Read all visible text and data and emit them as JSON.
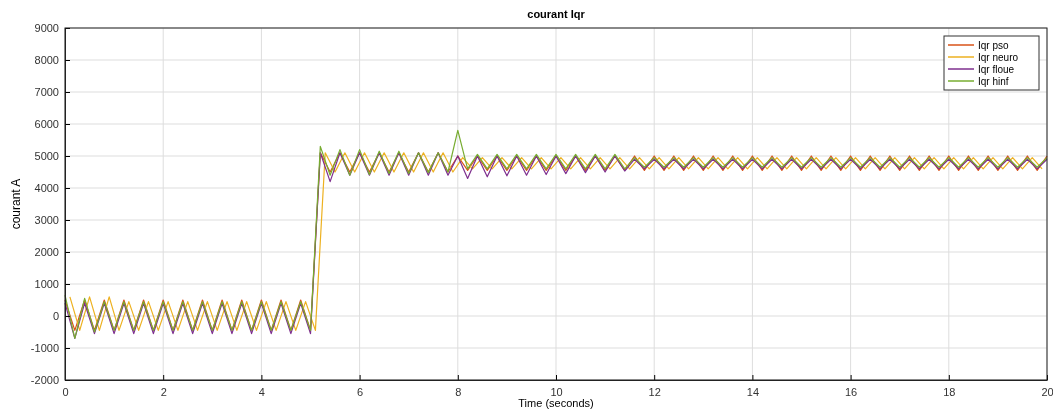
{
  "chart_data": {
    "type": "line",
    "title": "courant  Iqr",
    "xlabel": "Time (seconds)",
    "ylabel": "courant  A",
    "x": [
      0,
      0.2,
      0.4,
      0.6,
      0.8,
      1,
      1.2,
      1.4,
      1.6,
      1.8,
      2,
      2.2,
      2.4,
      2.6,
      2.8,
      3,
      3.2,
      3.4,
      3.6,
      3.8,
      4,
      4.2,
      4.4,
      4.6,
      4.8,
      5,
      5.2,
      5.4,
      5.6,
      5.8,
      6,
      6.2,
      6.4,
      6.6,
      6.8,
      7,
      7.2,
      7.4,
      7.6,
      7.8,
      8,
      8.2,
      8.4,
      8.6,
      8.8,
      9,
      9.2,
      9.4,
      9.6,
      9.8,
      10,
      10.2,
      10.4,
      10.6,
      10.8,
      11,
      11.2,
      11.4,
      11.6,
      11.8,
      12,
      12.2,
      12.4,
      12.6,
      12.8,
      13,
      13.2,
      13.4,
      13.6,
      13.8,
      14,
      14.2,
      14.4,
      14.6,
      14.8,
      15,
      15.2,
      15.4,
      15.6,
      15.8,
      16,
      16.2,
      16.4,
      16.6,
      16.8,
      17,
      17.2,
      17.4,
      17.6,
      17.8,
      18,
      18.2,
      18.4,
      18.6,
      18.8,
      19,
      19.2,
      19.4,
      19.6,
      19.8,
      20
    ],
    "series": [
      {
        "name": "Iqr pso",
        "color": "#d95319",
        "values": [
          500,
          -450,
          500,
          -450,
          500,
          -450,
          500,
          -450,
          500,
          -450,
          500,
          -450,
          500,
          -450,
          500,
          -450,
          500,
          -450,
          500,
          -450,
          500,
          -450,
          500,
          -450,
          500,
          -450,
          5100,
          4500,
          5100,
          4500,
          5100,
          4500,
          5100,
          4500,
          5100,
          4500,
          5100,
          4500,
          5100,
          4500,
          5000,
          4550,
          5000,
          4550,
          5000,
          4550,
          5000,
          4550,
          5000,
          4550,
          5000,
          4550,
          5000,
          4550,
          5000,
          4550,
          5000,
          4550,
          5000,
          4550,
          5000,
          4550,
          5000,
          4550,
          5000,
          4550,
          5000,
          4550,
          5000,
          4550,
          5000,
          4550,
          5000,
          4550,
          5000,
          4550,
          5000,
          4550,
          5000,
          4550,
          5000,
          4550,
          5000,
          4550,
          5000,
          4550,
          5000,
          4550,
          5000,
          4550,
          5000,
          4550,
          5000,
          4550,
          5000,
          4550,
          5000,
          4550,
          5000,
          4550,
          5000
        ]
      },
      {
        "name": "Iqr neuro",
        "color": "#edb120",
        "x": [
          0.1,
          0.3,
          0.5,
          0.7,
          0.9,
          1.1,
          1.3,
          1.5,
          1.7,
          1.9,
          2.1,
          2.3,
          2.5,
          2.7,
          2.9,
          3.1,
          3.3,
          3.5,
          3.7,
          3.9,
          4.1,
          4.3,
          4.5,
          4.7,
          4.9,
          5.1,
          5.3,
          5.5,
          5.7,
          5.9,
          6.1,
          6.3,
          6.5,
          6.7,
          6.9,
          7.1,
          7.3,
          7.5,
          7.7,
          7.9,
          8.1,
          8.3,
          8.5,
          8.7,
          8.9,
          9.1,
          9.3,
          9.5,
          9.7,
          9.9,
          10.1,
          10.3,
          10.5,
          10.7,
          10.9,
          11.1,
          11.3,
          11.5,
          11.7,
          11.9,
          12.1,
          12.3,
          12.5,
          12.7,
          12.9,
          13.1,
          13.3,
          13.5,
          13.7,
          13.9,
          14.1,
          14.3,
          14.5,
          14.7,
          14.9,
          15.1,
          15.3,
          15.5,
          15.7,
          15.9,
          16.1,
          16.3,
          16.5,
          16.7,
          16.9,
          17.1,
          17.3,
          17.5,
          17.7,
          17.9,
          18.1,
          18.3,
          18.5,
          18.7,
          18.9,
          19.1,
          19.3,
          19.5,
          19.7,
          19.9
        ],
        "values": [
          600,
          -450,
          600,
          -450,
          600,
          -450,
          450,
          -450,
          450,
          -450,
          450,
          -450,
          450,
          -450,
          450,
          -450,
          450,
          -450,
          450,
          -450,
          450,
          -450,
          450,
          -450,
          450,
          -450,
          5100,
          4500,
          5100,
          4500,
          5100,
          4500,
          5100,
          4500,
          5100,
          4500,
          5100,
          4500,
          5100,
          4500,
          4950,
          4600,
          4950,
          4600,
          4950,
          4600,
          4950,
          4600,
          4950,
          4600,
          4950,
          4600,
          4950,
          4600,
          4950,
          4600,
          4950,
          4600,
          4950,
          4600,
          4950,
          4600,
          4950,
          4600,
          4950,
          4600,
          4950,
          4600,
          4950,
          4600,
          4950,
          4600,
          4950,
          4600,
          4950,
          4600,
          4950,
          4600,
          4950,
          4600,
          4950,
          4600,
          4950,
          4600,
          4950,
          4600,
          4950,
          4600,
          4950,
          4600,
          4950,
          4600,
          4950,
          4600,
          4950,
          4600,
          4950,
          4600,
          4950,
          4600
        ]
      },
      {
        "name": "Iqr floue",
        "color": "#7e2f8e",
        "values": [
          400,
          -700,
          400,
          -550,
          400,
          -550,
          400,
          -550,
          400,
          -550,
          400,
          -550,
          400,
          -550,
          400,
          -550,
          400,
          -550,
          400,
          -550,
          400,
          -550,
          400,
          -550,
          400,
          -550,
          5100,
          4200,
          5100,
          4400,
          5100,
          4400,
          5100,
          4400,
          5100,
          4400,
          5100,
          4400,
          5100,
          4400,
          5000,
          4300,
          5000,
          4350,
          5000,
          4380,
          5000,
          4400,
          5000,
          4420,
          5000,
          4450,
          5000,
          4480,
          5000,
          4500,
          5000,
          4530,
          4900,
          4600,
          4900,
          4600,
          4900,
          4600,
          4900,
          4600,
          4900,
          4600,
          4900,
          4600,
          4900,
          4600,
          4900,
          4600,
          4900,
          4600,
          4900,
          4600,
          4900,
          4600,
          4900,
          4600,
          4900,
          4600,
          4900,
          4600,
          4900,
          4600,
          4900,
          4600,
          4900,
          4600,
          4900,
          4600,
          4900,
          4600,
          4900,
          4600,
          4900,
          4600,
          4900
        ]
      },
      {
        "name": "Iqr hinf",
        "color": "#77ac30",
        "values": [
          650,
          -700,
          550,
          -500,
          450,
          -450,
          450,
          -450,
          450,
          -450,
          450,
          -450,
          450,
          -450,
          450,
          -450,
          450,
          -450,
          450,
          -450,
          450,
          -450,
          450,
          -450,
          450,
          -450,
          5300,
          4400,
          5200,
          4400,
          5200,
          4420,
          5150,
          4450,
          5150,
          4450,
          5100,
          4480,
          5100,
          4500,
          5800,
          4600,
          5050,
          4600,
          5050,
          4600,
          5050,
          4600,
          5050,
          4600,
          5050,
          4600,
          5050,
          4600,
          5050,
          4600,
          5050,
          4600,
          4950,
          4650,
          4950,
          4650,
          4950,
          4650,
          4950,
          4650,
          4950,
          4650,
          4950,
          4650,
          4950,
          4650,
          4950,
          4650,
          4950,
          4650,
          4950,
          4650,
          4950,
          4650,
          4950,
          4650,
          4950,
          4650,
          4950,
          4650,
          4950,
          4650,
          4950,
          4650,
          4950,
          4650,
          4950,
          4650,
          4950,
          4650,
          4950,
          4650,
          4950,
          4650,
          4950
        ]
      }
    ],
    "xlim": [
      0,
      20
    ],
    "xticks": [
      0,
      2,
      4,
      6,
      8,
      10,
      12,
      14,
      16,
      18,
      20
    ],
    "ylim": [
      -2000,
      9000
    ],
    "yticks": [
      -2000,
      -1000,
      0,
      1000,
      2000,
      3000,
      4000,
      5000,
      6000,
      7000,
      8000,
      9000
    ],
    "grid": true,
    "legend": "top right",
    "marker": "none",
    "line_style": "solid"
  }
}
